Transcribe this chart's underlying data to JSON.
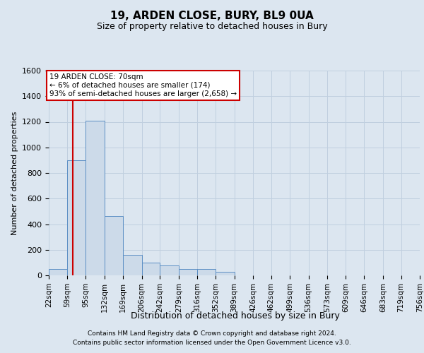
{
  "title": "19, ARDEN CLOSE, BURY, BL9 0UA",
  "subtitle": "Size of property relative to detached houses in Bury",
  "xlabel": "Distribution of detached houses by size in Bury",
  "ylabel": "Number of detached properties",
  "footer_line1": "Contains HM Land Registry data © Crown copyright and database right 2024.",
  "footer_line2": "Contains public sector information licensed under the Open Government Licence v3.0.",
  "annotation_title": "19 ARDEN CLOSE: 70sqm",
  "annotation_line2": "← 6% of detached houses are smaller (174)",
  "annotation_line3": "93% of semi-detached houses are larger (2,658) →",
  "property_size": 70,
  "bin_edges": [
    22,
    59,
    95,
    132,
    169,
    206,
    242,
    279,
    316,
    352,
    389,
    426,
    462,
    499,
    536,
    573,
    609,
    646,
    683,
    719,
    756
  ],
  "bin_counts": [
    50,
    900,
    1210,
    465,
    160,
    100,
    80,
    50,
    50,
    30,
    0,
    0,
    0,
    0,
    0,
    0,
    0,
    0,
    0,
    0
  ],
  "bar_facecolor": "#ccdae9",
  "bar_edgecolor": "#5b8ec4",
  "vline_color": "#cc0000",
  "annotation_box_edgecolor": "#cc0000",
  "annotation_box_facecolor": "#ffffff",
  "grid_color": "#c0cfdf",
  "background_color": "#dce6f0",
  "ylim": [
    0,
    1600
  ],
  "yticks": [
    0,
    200,
    400,
    600,
    800,
    1000,
    1200,
    1400,
    1600
  ]
}
